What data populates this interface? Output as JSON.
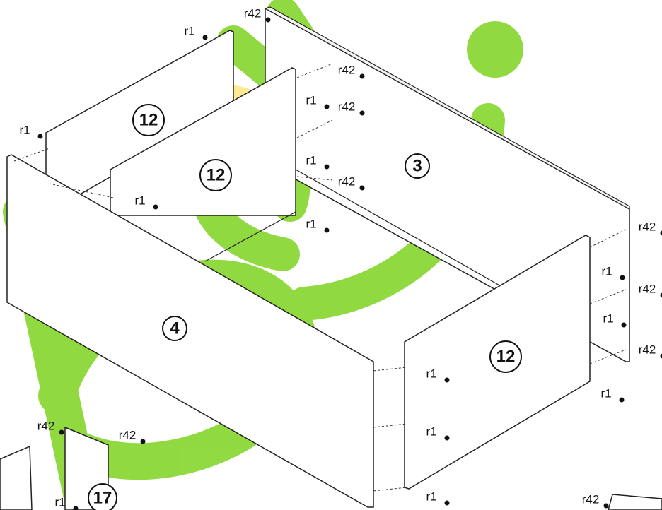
{
  "parts": [
    {
      "label": "12"
    },
    {
      "label": "12"
    },
    {
      "label": "3"
    },
    {
      "label": "4"
    },
    {
      "label": "12"
    },
    {
      "label": "17"
    }
  ],
  "connectors": [
    {
      "label": "r42"
    },
    {
      "label": "r1"
    },
    {
      "label": "r42"
    },
    {
      "label": "r1"
    },
    {
      "label": "r42"
    },
    {
      "label": "r1"
    },
    {
      "label": "r1"
    },
    {
      "label": "r42"
    },
    {
      "label": "r1"
    },
    {
      "label": "r1"
    },
    {
      "label": "r42"
    },
    {
      "label": "r1"
    },
    {
      "label": "r42"
    },
    {
      "label": "r1"
    },
    {
      "label": "r42"
    },
    {
      "label": "r1"
    },
    {
      "label": "r1"
    },
    {
      "label": "r1"
    },
    {
      "label": "r1"
    },
    {
      "label": "r42"
    },
    {
      "label": "r42"
    },
    {
      "label": "r1"
    },
    {
      "label": "r42"
    }
  ]
}
